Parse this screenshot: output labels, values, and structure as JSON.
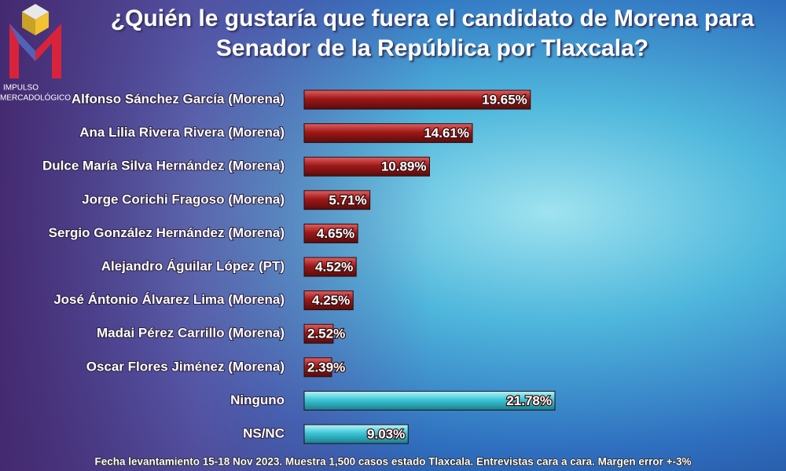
{
  "chart_data": {
    "type": "bar",
    "orientation": "horizontal",
    "title": "¿Quién le gustaría que fuera el candidato de Morena para Senador de la República por Tlaxcala?",
    "logo": [
      "IMPULSO",
      "MERCADOLÓGICO"
    ],
    "categories": [
      "Alfonso Sánchez García (Morena)",
      "Ana Lilia Rivera Rivera (Morena)",
      "Dulce María Silva Hernández (Morena)",
      "Jorge Corichi Fragoso (Morena)",
      "Sergio González Hernández  (Morena)",
      "Alejandro Águilar López (PT)",
      "José Ántonio Álvarez Lima (Morena)",
      "Madai Pérez Carrillo (Morena)",
      "Oscar Flores Jiménez (Morena)",
      "Ninguno",
      "NS/NC"
    ],
    "values": [
      19.65,
      14.61,
      10.89,
      5.71,
      4.65,
      4.52,
      4.25,
      2.52,
      2.39,
      21.78,
      9.03
    ],
    "value_labels": [
      "19.65%",
      "14.61%",
      "10.89%",
      "5.71%",
      "4.65%",
      "4.52%",
      "4.25%",
      "2.52%",
      "2.39%",
      "21.78%",
      "9.03%"
    ],
    "colors": [
      "#9c1a1c",
      "#9c1a1c",
      "#9c1a1c",
      "#9c1a1c",
      "#9c1a1c",
      "#9c1a1c",
      "#9c1a1c",
      "#9c1a1c",
      "#9c1a1c",
      "#3cc6d6",
      "#3cc6d6"
    ],
    "note": "Fecha levantamiento 15-18 Nov 2023. Muestra 1,500 casos estado Tlaxcala. Entrevistas cara a cara. Margen error +-3%"
  }
}
